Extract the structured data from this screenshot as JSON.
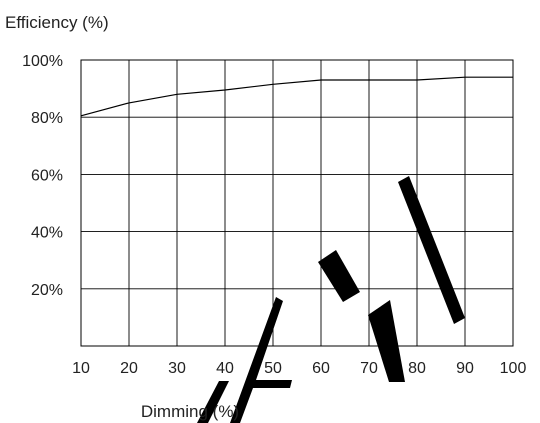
{
  "chart_data": {
    "type": "line",
    "title": "",
    "ylabel": "Efficiency (%)",
    "xlabel": "Dimming (%)",
    "xlim": [
      10,
      100
    ],
    "ylim": [
      0,
      100
    ],
    "xticks": [
      10,
      20,
      30,
      40,
      50,
      60,
      70,
      80,
      90,
      100
    ],
    "yticks": [
      20,
      40,
      60,
      80,
      100
    ],
    "ytick_labels": [
      "20%",
      "40%",
      "60%",
      "80%",
      "100%"
    ],
    "grid": true,
    "legend": "none",
    "series": [
      {
        "x": [
          10,
          20,
          30,
          40,
          50,
          60,
          70,
          80,
          90,
          100
        ],
        "values": [
          80.5,
          85,
          88,
          89.5,
          91.5,
          93,
          93,
          93,
          94,
          94
        ]
      }
    ],
    "watermark": "PRELIMINARY",
    "colors": {
      "line": "#000000",
      "grid": "#000000",
      "watermark": "#000000"
    }
  }
}
